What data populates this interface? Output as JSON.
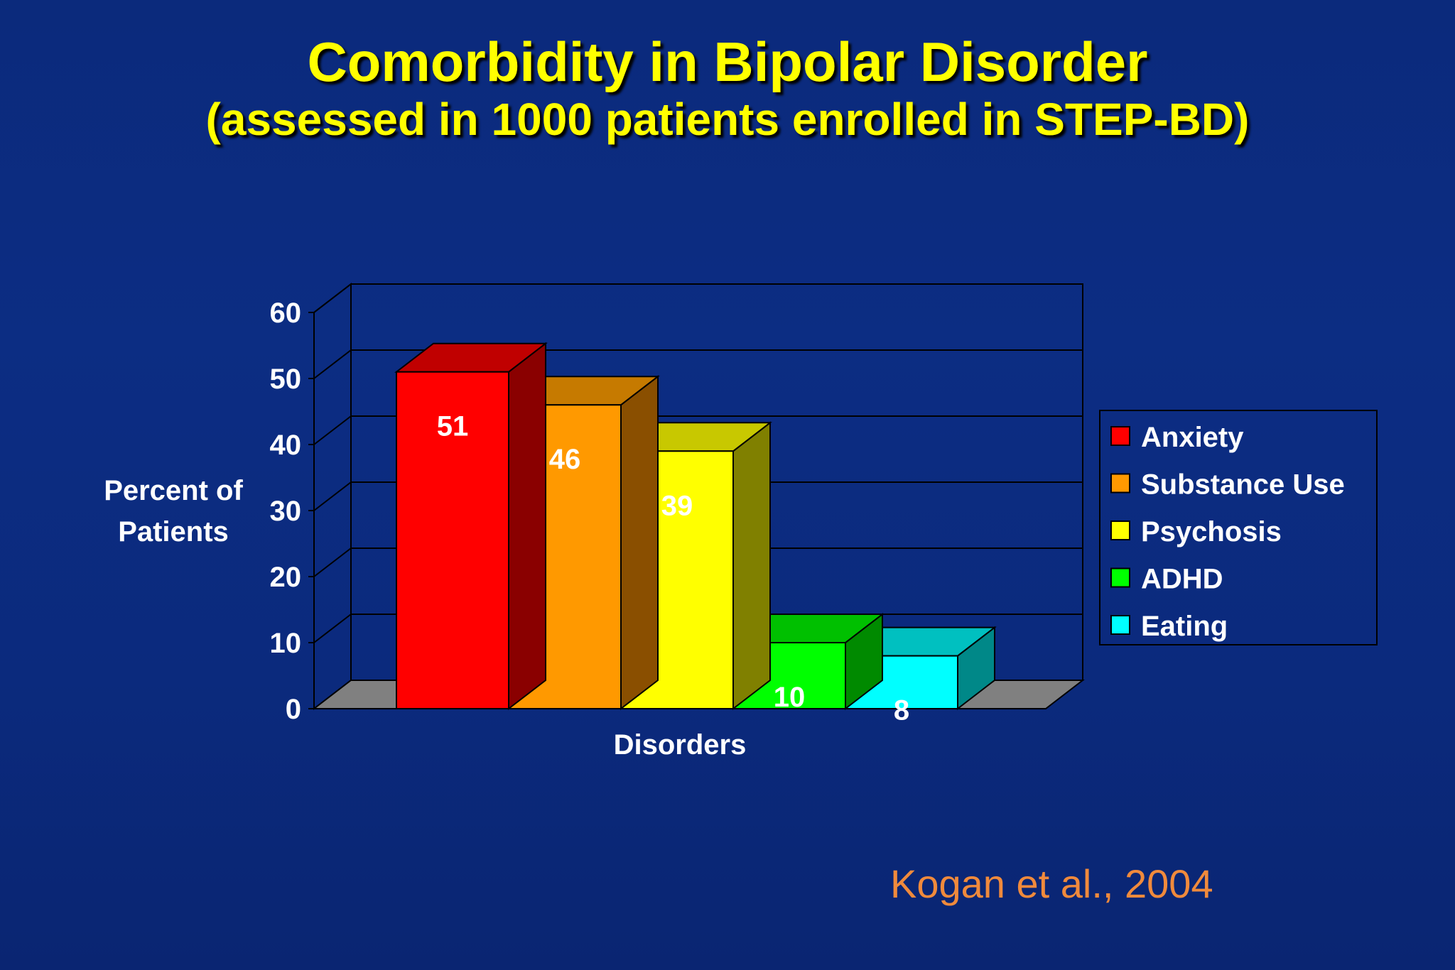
{
  "slide": {
    "title": "Comorbidity in Bipolar Disorder",
    "subtitle": "(assessed in 1000 patients enrolled in STEP-BD)",
    "citation": "Kogan et al., 2004"
  },
  "chart_data": {
    "type": "bar",
    "style": "3d-clustered",
    "title": "",
    "xlabel": "Disorders",
    "ylabel_lines": [
      "Percent of",
      "Patients"
    ],
    "ylim": [
      0,
      60
    ],
    "yticks": [
      "0",
      "10",
      "20",
      "30",
      "40",
      "50",
      "60"
    ],
    "grid": true,
    "legend_position": "right",
    "categories": [
      "Disorders"
    ],
    "series": [
      {
        "name": "Anxiety",
        "value": 51,
        "label": "51",
        "color": "#ff0000",
        "top_color": "#c00000",
        "side_color": "#8a0000"
      },
      {
        "name": "Substance Use",
        "value": 46,
        "label": "46",
        "color": "#ff9900",
        "top_color": "#c67a00",
        "side_color": "#8a4f00"
      },
      {
        "name": "Psychosis",
        "value": 39,
        "label": "39",
        "color": "#ffff00",
        "top_color": "#c8c800",
        "side_color": "#808000"
      },
      {
        "name": "ADHD",
        "value": 10,
        "label": "10",
        "color": "#00ff00",
        "top_color": "#00c000",
        "side_color": "#008a00"
      },
      {
        "name": "Eating",
        "value": 8,
        "label": "8",
        "color": "#00ffff",
        "top_color": "#00c0c0",
        "side_color": "#008888"
      }
    ],
    "colors": {
      "floor": "#808080",
      "walls": "#003399",
      "axis_text": "#ffffff",
      "value_label": "#ffffff"
    }
  }
}
